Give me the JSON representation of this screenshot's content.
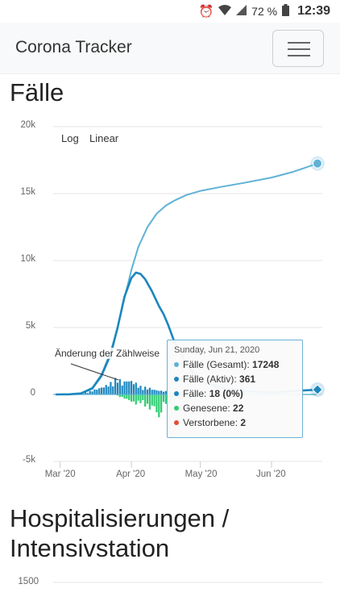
{
  "status_bar": {
    "battery": "72 %",
    "time": "12:39"
  },
  "navbar": {
    "brand": "Corona Tracker"
  },
  "section1": {
    "title": "Fälle"
  },
  "chart_controls": {
    "log": "Log",
    "linear": "Linear"
  },
  "annotation": "Änderung der Zählweise",
  "tooltip": {
    "date": "Sunday, Jun 21, 2020",
    "rows": [
      {
        "label": "Fälle (Gesamt): ",
        "value": "17248",
        "color": "#5fb2d6"
      },
      {
        "label": "Fälle (Aktiv): ",
        "value": "361",
        "color": "#1c86bd"
      },
      {
        "label": "Fälle: ",
        "value": "18 (0%)",
        "color": "#1c86bd"
      },
      {
        "label": "Genesene: ",
        "value": "22",
        "color": "#2ecc71"
      },
      {
        "label": "Verstorbene: ",
        "value": "2",
        "color": "#e74c3c"
      }
    ]
  },
  "section2": {
    "title_line1": "Hospitalisierungen /",
    "title_line2": "Intensivstation"
  },
  "chart2": {
    "ytick_top": "1500"
  },
  "chart_data": {
    "type": "line",
    "title": "Fälle",
    "x_ticks": [
      "Mar '20",
      "Apr '20",
      "May '20",
      "Jun '20"
    ],
    "y_ticks": [
      "20k",
      "15k",
      "10k",
      "5k",
      "0",
      "-5k"
    ],
    "ylim": [
      -5000,
      20000
    ],
    "x_range": [
      "2020-02-28",
      "2020-06-21"
    ],
    "series": [
      {
        "name": "Fälle (Gesamt)",
        "color": "#5fb2d6",
        "points": [
          [
            "2020-02-28",
            0
          ],
          [
            "2020-03-05",
            10
          ],
          [
            "2020-03-10",
            80
          ],
          [
            "2020-03-15",
            500
          ],
          [
            "2020-03-19",
            1500
          ],
          [
            "2020-03-23",
            3200
          ],
          [
            "2020-03-26",
            5000
          ],
          [
            "2020-03-29",
            7200
          ],
          [
            "2020-04-01",
            9300
          ],
          [
            "2020-04-04",
            11000
          ],
          [
            "2020-04-08",
            12500
          ],
          [
            "2020-04-12",
            13500
          ],
          [
            "2020-04-16",
            14100
          ],
          [
            "2020-04-20",
            14500
          ],
          [
            "2020-04-25",
            14900
          ],
          [
            "2020-05-01",
            15200
          ],
          [
            "2020-05-10",
            15500
          ],
          [
            "2020-05-20",
            15800
          ],
          [
            "2020-06-01",
            16200
          ],
          [
            "2020-06-10",
            16600
          ],
          [
            "2020-06-21",
            17248
          ]
        ]
      },
      {
        "name": "Fälle (Aktiv)",
        "color": "#1c86bd",
        "points": [
          [
            "2020-02-28",
            0
          ],
          [
            "2020-03-05",
            10
          ],
          [
            "2020-03-10",
            80
          ],
          [
            "2020-03-15",
            450
          ],
          [
            "2020-03-19",
            1400
          ],
          [
            "2020-03-23",
            3000
          ],
          [
            "2020-03-26",
            5000
          ],
          [
            "2020-03-29",
            7300
          ],
          [
            "2020-04-01",
            8700
          ],
          [
            "2020-04-03",
            9100
          ],
          [
            "2020-04-05",
            9000
          ],
          [
            "2020-04-07",
            8600
          ],
          [
            "2020-04-10",
            7700
          ],
          [
            "2020-04-13",
            6600
          ],
          [
            "2020-04-15",
            6000
          ],
          [
            "2020-04-17",
            5200
          ],
          [
            "2020-04-20",
            3800
          ],
          [
            "2020-04-24",
            2600
          ],
          [
            "2020-04-28",
            1600
          ],
          [
            "2020-05-03",
            900
          ],
          [
            "2020-05-10",
            500
          ],
          [
            "2020-05-20",
            250
          ],
          [
            "2020-06-01",
            150
          ],
          [
            "2020-06-10",
            250
          ],
          [
            "2020-06-21",
            361
          ]
        ]
      },
      {
        "name": "Fälle",
        "color": "#1c86bd",
        "points": [
          [
            "2020-03-10",
            60
          ],
          [
            "2020-03-13",
            150
          ],
          [
            "2020-03-16",
            300
          ],
          [
            "2020-03-18",
            400
          ],
          [
            "2020-03-20",
            500
          ],
          [
            "2020-03-22",
            650
          ],
          [
            "2020-03-24",
            800
          ],
          [
            "2020-03-26",
            1100
          ],
          [
            "2020-03-28",
            700
          ],
          [
            "2020-03-30",
            900
          ],
          [
            "2020-04-01",
            850
          ],
          [
            "2020-04-03",
            700
          ],
          [
            "2020-04-05",
            500
          ],
          [
            "2020-04-07",
            450
          ],
          [
            "2020-04-09",
            400
          ],
          [
            "2020-04-11",
            300
          ],
          [
            "2020-04-13",
            250
          ],
          [
            "2020-04-16",
            200
          ],
          [
            "2020-04-20",
            150
          ],
          [
            "2020-04-25",
            100
          ],
          [
            "2020-05-01",
            60
          ],
          [
            "2020-05-10",
            30
          ],
          [
            "2020-06-21",
            18
          ]
        ]
      },
      {
        "name": "Genesene",
        "color": "#2ecc71",
        "points": [
          [
            "2020-03-26",
            -100
          ],
          [
            "2020-03-28",
            -200
          ],
          [
            "2020-03-30",
            -300
          ],
          [
            "2020-04-01",
            -450
          ],
          [
            "2020-04-03",
            -600
          ],
          [
            "2020-04-05",
            -500
          ],
          [
            "2020-04-07",
            -700
          ],
          [
            "2020-04-09",
            -900
          ],
          [
            "2020-04-11",
            -750
          ],
          [
            "2020-04-13",
            -1600
          ],
          [
            "2020-04-15",
            -600
          ],
          [
            "2020-04-17",
            -500
          ],
          [
            "2020-04-20",
            -400
          ],
          [
            "2020-04-25",
            -250
          ],
          [
            "2020-05-01",
            -120
          ],
          [
            "2020-05-10",
            -60
          ],
          [
            "2020-06-21",
            -22
          ]
        ]
      },
      {
        "name": "Verstorbene",
        "color": "#e74c3c",
        "points": [
          [
            "2020-06-21",
            -2
          ]
        ]
      }
    ]
  }
}
